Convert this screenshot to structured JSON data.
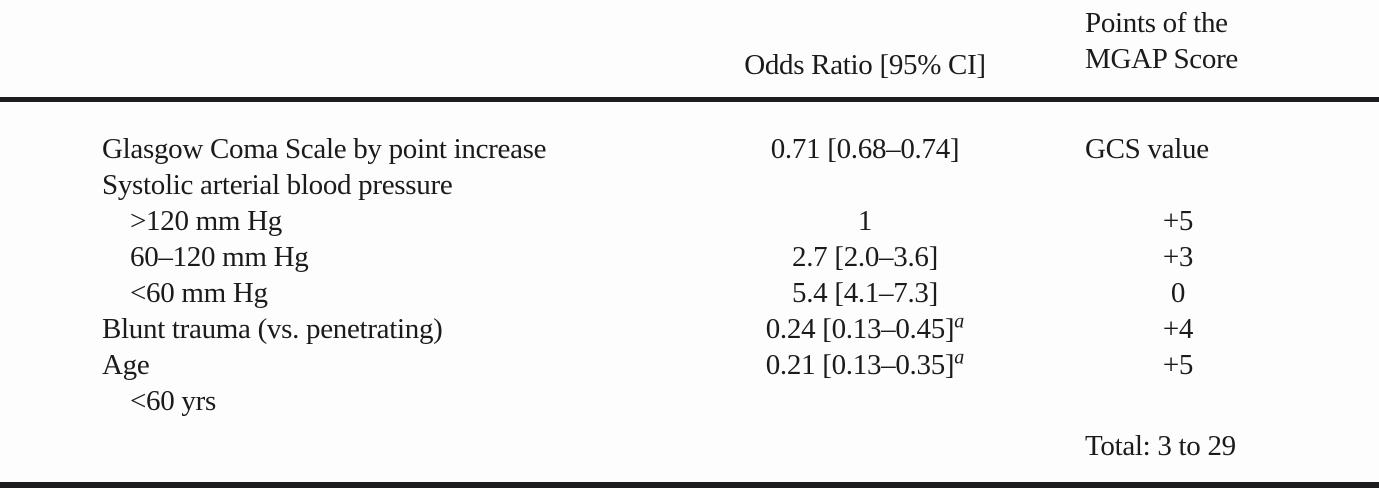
{
  "table": {
    "header": {
      "odds_ratio": "Odds Ratio [95% CI]",
      "points_line1": "Points of the",
      "points_line2": "MGAP Score"
    },
    "rows": [
      {
        "label": "Glasgow Coma Scale by point increase",
        "indent": false,
        "odds": "0.71 [0.68–0.74]",
        "odds_sup": "",
        "points": "GCS value"
      },
      {
        "label": "Systolic arterial blood pressure",
        "indent": false,
        "odds": "",
        "odds_sup": "",
        "points": ""
      },
      {
        "label": ">120 mm Hg",
        "indent": true,
        "odds": "1",
        "odds_sup": "",
        "points": "+5"
      },
      {
        "label": "60–120 mm Hg",
        "indent": true,
        "odds": "2.7 [2.0–3.6]",
        "odds_sup": "",
        "points": "+3"
      },
      {
        "label": "<60 mm Hg",
        "indent": true,
        "odds": "5.4 [4.1–7.3]",
        "odds_sup": "",
        "points": "0"
      },
      {
        "label": "Blunt trauma (vs. penetrating)",
        "indent": false,
        "odds": "0.24 [0.13–0.45]",
        "odds_sup": "a",
        "points": "+4"
      },
      {
        "label": "Age",
        "indent": false,
        "odds": "0.21 [0.13–0.35]",
        "odds_sup": "a",
        "points": "+5"
      },
      {
        "label": "<60 yrs",
        "indent": true,
        "odds": "",
        "odds_sup": "",
        "points": ""
      }
    ],
    "footer": {
      "total": "Total: 3 to 29"
    }
  },
  "colors": {
    "background": "#fdfdfd",
    "text": "#1b1b1b",
    "rule": "#1d1d1f"
  }
}
